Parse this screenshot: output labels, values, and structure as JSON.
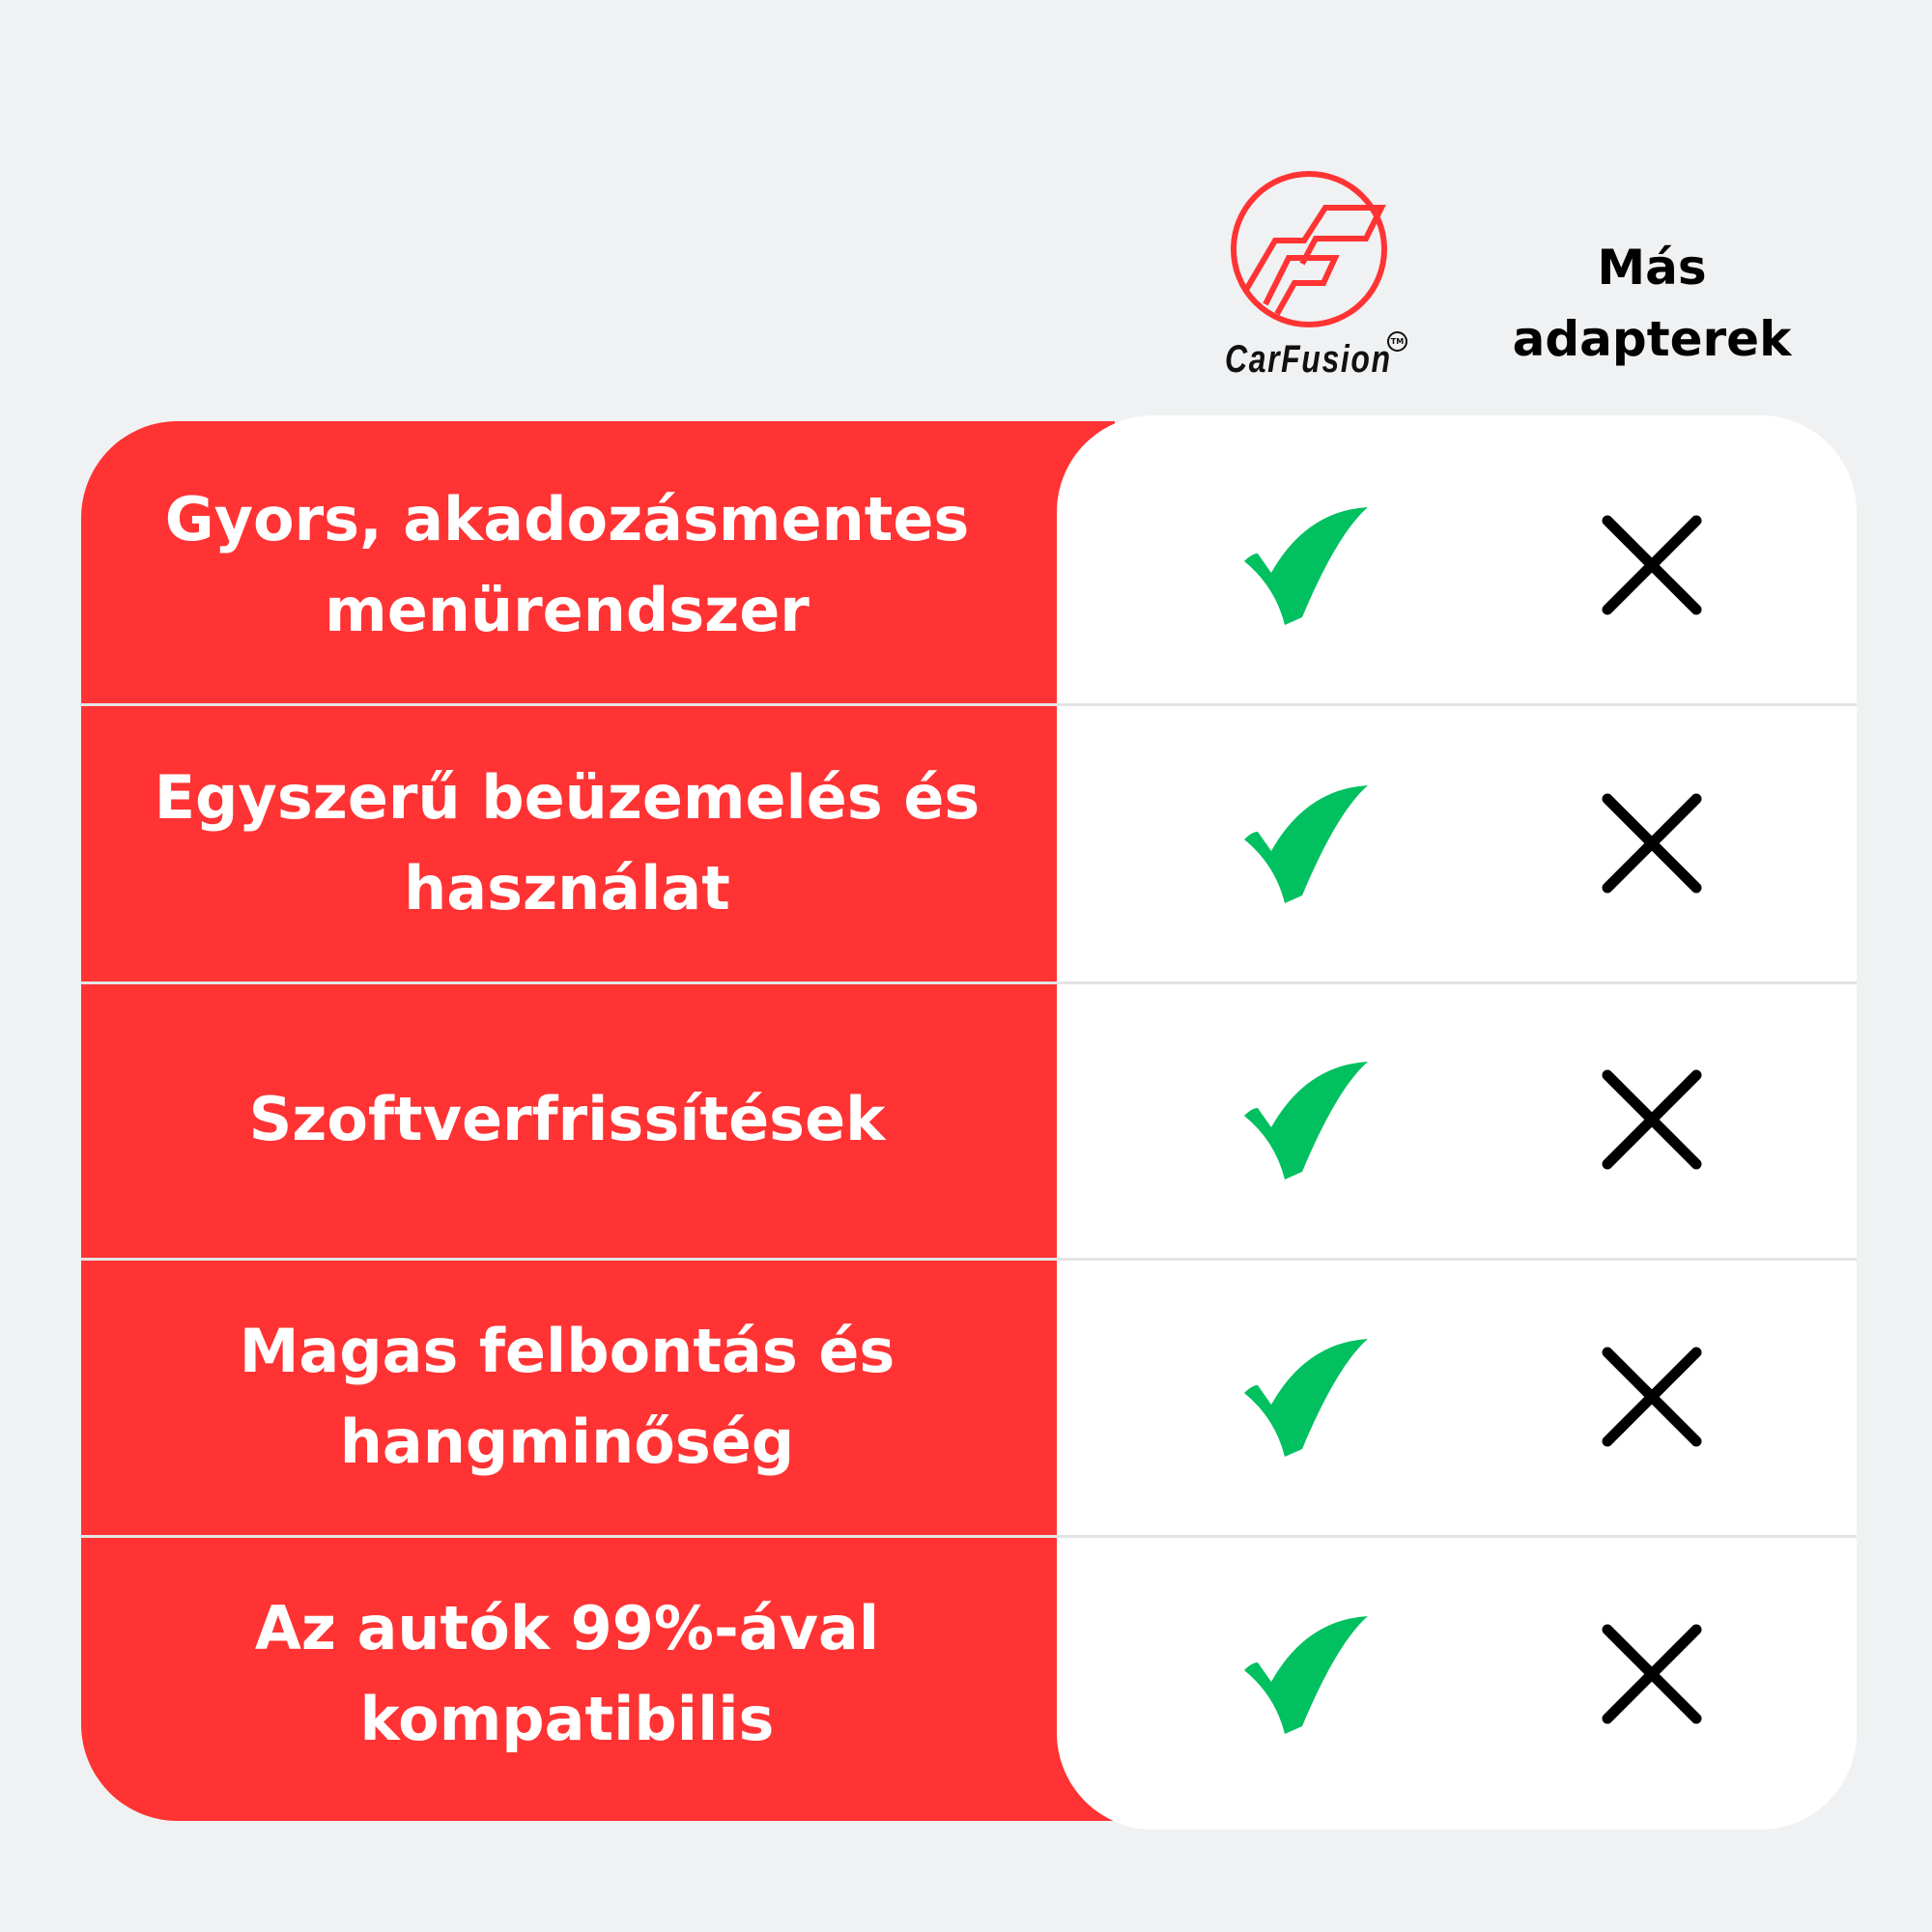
{
  "header": {
    "brand": {
      "name": "CarFusion",
      "trademark": "TM",
      "color": "#ff3333"
    },
    "other_label_line1": "Más",
    "other_label_line2": "adapterek"
  },
  "colors": {
    "panel_red": "#ff3333",
    "check_green": "#00c060",
    "cross_black": "#000000",
    "background": "#eff1f2"
  },
  "rows": [
    {
      "line1": "Gyors, akadozásmentes",
      "line2": "menürendszer",
      "carfusion": "check-icon",
      "others": "cross-icon"
    },
    {
      "line1": "Egyszerű beüzemelés és",
      "line2": "használat",
      "carfusion": "check-icon",
      "others": "cross-icon"
    },
    {
      "line1": "Szoftverfrissítések",
      "line2": "",
      "carfusion": "check-icon",
      "others": "cross-icon"
    },
    {
      "line1": "Magas felbontás és",
      "line2": "hangminőség",
      "carfusion": "check-icon",
      "others": "cross-icon"
    },
    {
      "line1": "Az autók 99%-ával",
      "line2": "kompatibilis",
      "carfusion": "check-icon",
      "others": "cross-icon"
    }
  ]
}
